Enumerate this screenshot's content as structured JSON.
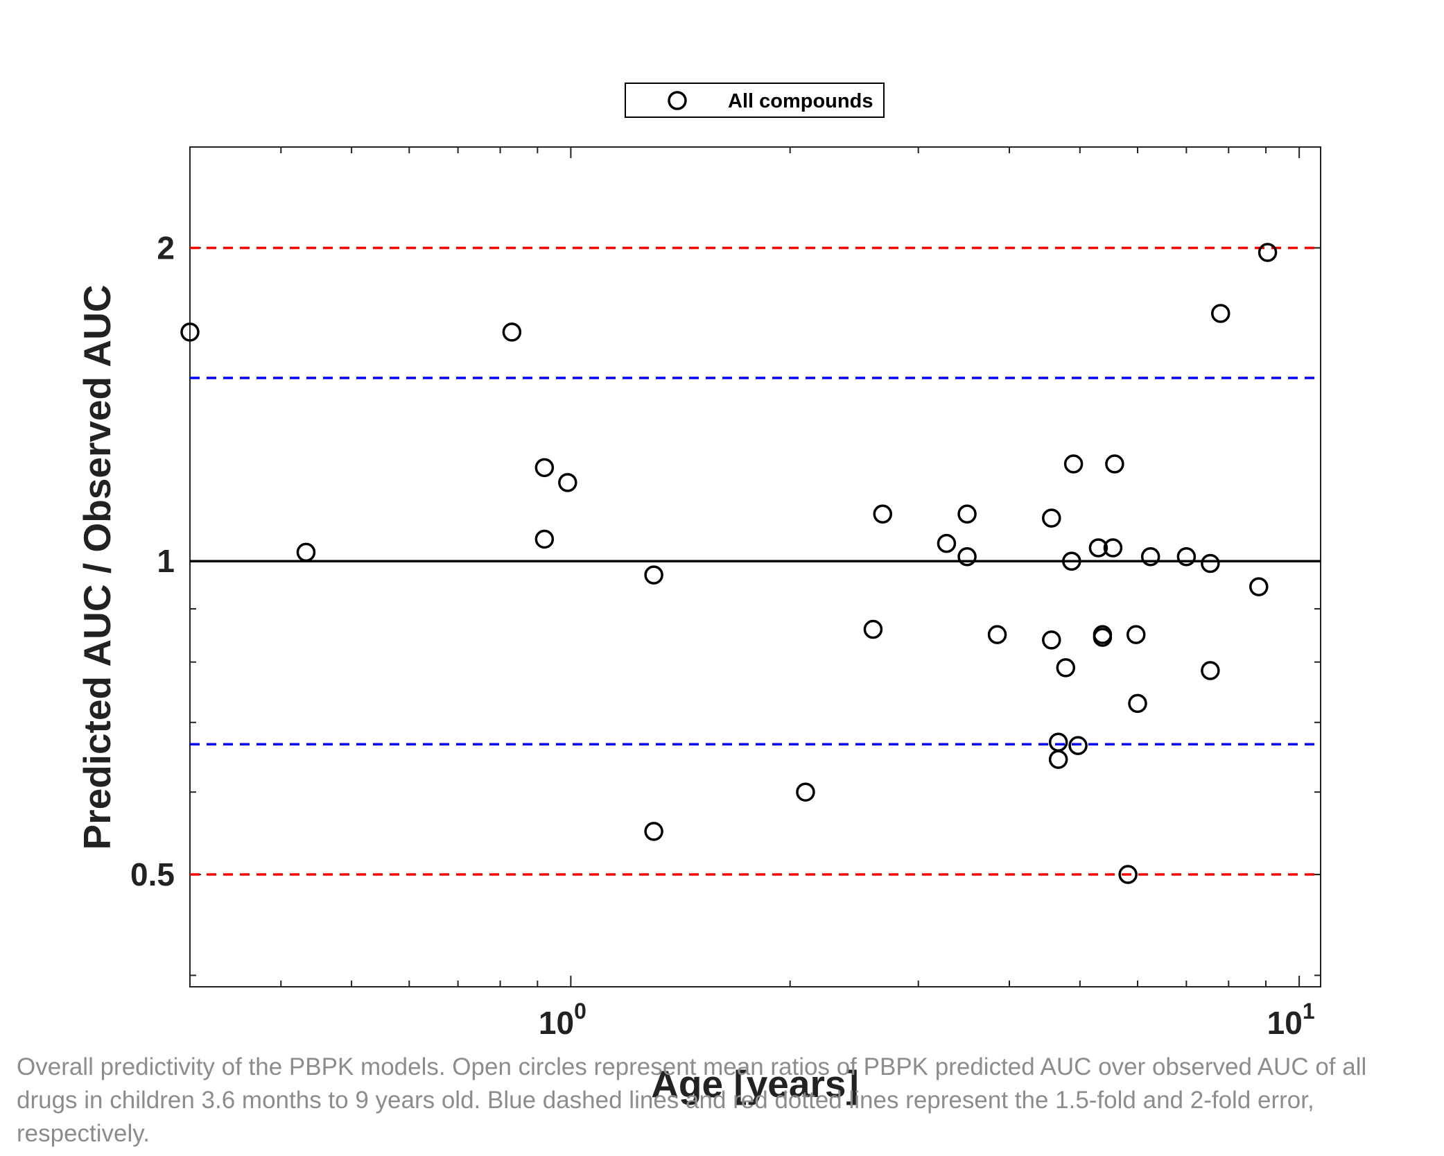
{
  "chart_data": {
    "type": "scatter",
    "xscale": "log",
    "yscale": "log",
    "xlim": [
      0.3,
      10.7
    ],
    "ylim": [
      0.39,
      2.5
    ],
    "xlabel": "Age [years]",
    "ylabel": "Predicted AUC / Observed AUC",
    "xticks": [
      {
        "base": "10",
        "exp": "0",
        "value": 1
      },
      {
        "base": "10",
        "exp": "1",
        "value": 10
      }
    ],
    "yticks": [
      {
        "label": "0.5",
        "value": 0.5
      },
      {
        "label": "1",
        "value": 1
      },
      {
        "label": "2",
        "value": 2
      }
    ],
    "legend": {
      "position": "top-center",
      "entries": [
        "All compounds"
      ]
    },
    "reference_lines": [
      {
        "y": 2,
        "style": "dashed",
        "color": "#ff0000"
      },
      {
        "y": 1.5,
        "style": "dashed",
        "color": "#0000ff"
      },
      {
        "y": 1,
        "style": "solid",
        "color": "#000000"
      },
      {
        "y": 0.667,
        "style": "dashed",
        "color": "#0000ff"
      },
      {
        "y": 0.5,
        "style": "dashed",
        "color": "#ff0000"
      }
    ],
    "series": [
      {
        "name": "All compounds",
        "marker": "open-circle",
        "color": "#000000",
        "points": [
          {
            "x": 0.3,
            "y": 1.66
          },
          {
            "x": 0.433,
            "y": 1.02
          },
          {
            "x": 0.83,
            "y": 1.66
          },
          {
            "x": 0.92,
            "y": 1.23
          },
          {
            "x": 0.92,
            "y": 1.05
          },
          {
            "x": 0.99,
            "y": 1.19
          },
          {
            "x": 1.3,
            "y": 0.97
          },
          {
            "x": 1.3,
            "y": 0.55
          },
          {
            "x": 2.1,
            "y": 0.6
          },
          {
            "x": 2.6,
            "y": 0.86
          },
          {
            "x": 2.68,
            "y": 1.11
          },
          {
            "x": 3.28,
            "y": 1.04
          },
          {
            "x": 3.5,
            "y": 1.11
          },
          {
            "x": 3.5,
            "y": 1.01
          },
          {
            "x": 3.85,
            "y": 0.85
          },
          {
            "x": 4.57,
            "y": 1.1
          },
          {
            "x": 4.57,
            "y": 0.84
          },
          {
            "x": 4.67,
            "y": 0.67
          },
          {
            "x": 4.67,
            "y": 0.645
          },
          {
            "x": 4.78,
            "y": 0.79
          },
          {
            "x": 4.87,
            "y": 1.0
          },
          {
            "x": 4.9,
            "y": 1.24
          },
          {
            "x": 4.97,
            "y": 0.665
          },
          {
            "x": 5.3,
            "y": 1.03
          },
          {
            "x": 5.37,
            "y": 0.85
          },
          {
            "x": 5.37,
            "y": 0.845
          },
          {
            "x": 5.55,
            "y": 1.03
          },
          {
            "x": 5.58,
            "y": 1.24
          },
          {
            "x": 5.82,
            "y": 0.5
          },
          {
            "x": 5.97,
            "y": 0.85
          },
          {
            "x": 6.0,
            "y": 0.73
          },
          {
            "x": 6.25,
            "y": 1.01
          },
          {
            "x": 7.0,
            "y": 1.01
          },
          {
            "x": 7.55,
            "y": 0.995
          },
          {
            "x": 7.55,
            "y": 0.785
          },
          {
            "x": 7.8,
            "y": 1.73
          },
          {
            "x": 8.8,
            "y": 0.945
          },
          {
            "x": 9.05,
            "y": 1.98
          }
        ]
      }
    ]
  },
  "caption": "Overall predictivity of the PBPK models. Open circles represent mean ratios of PBPK predicted AUC over observed AUC of all drugs in children 3.6 months to 9 years old. Blue dashed lines and red dotted lines represent the 1.5-fold and 2-fold error, respectively."
}
